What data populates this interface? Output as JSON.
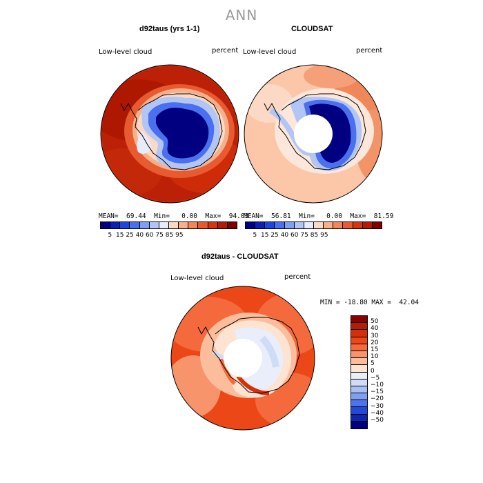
{
  "title": "ANN",
  "panels": {
    "model": {
      "title": "d92taus (yrs 1-1)",
      "left_label": "Low-level cloud",
      "right_label": "percent",
      "stats": "MEAN=  69.44  Min=   0.00  Max=  94.03"
    },
    "obs": {
      "title": "CLOUDSAT",
      "left_label": "Low-level cloud",
      "right_label": "percent",
      "stats": "MEAN=  56.81  Min=   0.00  Max=  81.59"
    },
    "diff": {
      "title": "d92taus - CLOUDSAT",
      "left_label": "Low-level cloud",
      "right_label": "percent",
      "stats": "MIN = -18.80 MAX =  42.04"
    }
  },
  "colorbar_abs": {
    "colors": [
      "#000080",
      "#0a1fb5",
      "#1f45e0",
      "#4a70f0",
      "#7f9ff2",
      "#b2c6f5",
      "#e6ecfa",
      "#fbd9c4",
      "#f6b08b",
      "#f18758",
      "#e85a30",
      "#d53612",
      "#b01c06",
      "#800000"
    ],
    "labels": [
      "5",
      "15",
      "25",
      "40",
      "60",
      "75",
      "85",
      "95"
    ]
  },
  "colorbar_diff": {
    "colors": [
      "#8b0000",
      "#b81b03",
      "#d6300b",
      "#ec4716",
      "#f56a3c",
      "#f8946c",
      "#fbbd9c",
      "#fde3d2",
      "#e9eefa",
      "#cfdcf7",
      "#a8bef5",
      "#7f9ff0",
      "#4f74ea",
      "#2449d8",
      "#0d28b0",
      "#000080"
    ],
    "labels": [
      "50",
      "40",
      "30",
      "20",
      "15",
      "10",
      "5",
      "0",
      "−5",
      "−10",
      "−15",
      "−20",
      "−30",
      "−40",
      "−50"
    ]
  },
  "chart_data": [
    {
      "type": "heatmap",
      "title": "d92taus (yrs 1-1)",
      "variable": "Low-level cloud",
      "units": "percent",
      "projection": "south-polar stereographic",
      "mean": 69.44,
      "min": 0.0,
      "max": 94.03,
      "levels": [
        5,
        15,
        25,
        40,
        60,
        75,
        85,
        95
      ]
    },
    {
      "type": "heatmap",
      "title": "CLOUDSAT",
      "variable": "Low-level cloud",
      "units": "percent",
      "projection": "south-polar stereographic",
      "mean": 56.81,
      "min": 0.0,
      "max": 81.59,
      "levels": [
        5,
        15,
        25,
        40,
        60,
        75,
        85,
        95
      ]
    },
    {
      "type": "heatmap",
      "title": "d92taus - CLOUDSAT",
      "variable": "Low-level cloud",
      "units": "percent",
      "projection": "south-polar stereographic",
      "min": -18.8,
      "max": 42.04,
      "levels": [
        -50,
        -40,
        -30,
        -20,
        -15,
        -10,
        -5,
        0,
        5,
        10,
        15,
        20,
        30,
        40,
        50
      ]
    }
  ]
}
